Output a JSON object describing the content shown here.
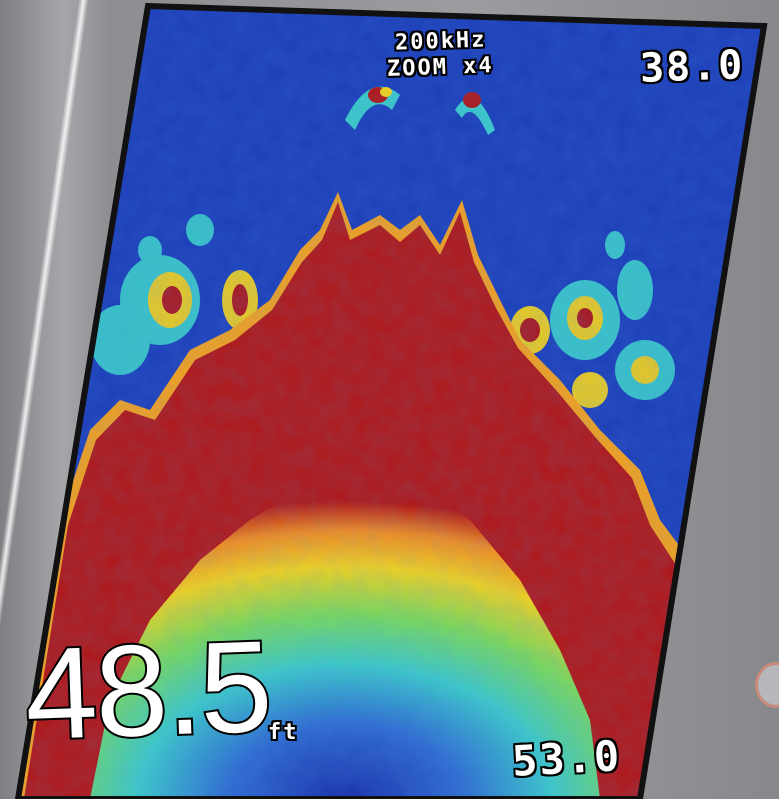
{
  "sonar": {
    "frequency": "200kHz",
    "zoom": "ZOOM x4",
    "range_top": "38.0",
    "range_bottom": "53.0",
    "depth_value": "48.5",
    "depth_unit": "ft"
  },
  "colors": {
    "water": "#1d3fb8",
    "bottom_strong": "#b01818",
    "bottom_weak": "#f0d020",
    "mid_return": "#3cc8c8",
    "bezel": "#9a9c9f"
  }
}
